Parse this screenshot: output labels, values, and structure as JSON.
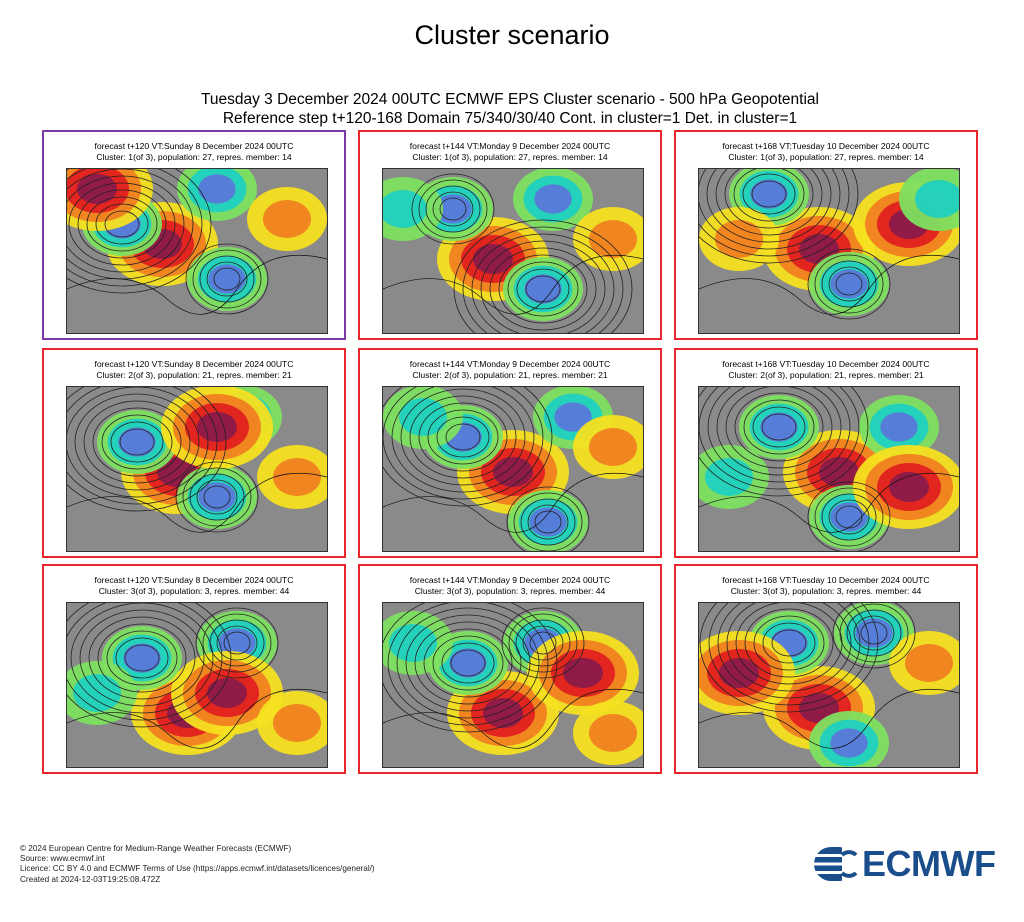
{
  "page": {
    "title": "Cluster scenario",
    "subtitle_line1": "Tuesday 3 December 2024 00UTC ECMWF EPS Cluster scenario - 500 hPa Geopotential",
    "subtitle_line2": "Reference step t+120-168 Domain 75/340/30/40 Cont. in cluster=1 Det. in cluster=1"
  },
  "panels": [
    {
      "line1": "forecast t+120 VT:Sunday 8 December 2024 00UTC",
      "line2": "Cluster: 1(of 3), population: 27, repres. member: 14"
    },
    {
      "line1": "forecast t+144 VT:Monday 9 December 2024 00UTC",
      "line2": "Cluster: 1(of 3), population: 27, repres. member: 14"
    },
    {
      "line1": "forecast t+168 VT:Tuesday 10 December 2024 00UTC",
      "line2": "Cluster: 1(of 3), population: 27, repres. member: 14"
    },
    {
      "line1": "forecast t+120 VT:Sunday 8 December 2024 00UTC",
      "line2": "Cluster: 2(of 3), population: 21, repres. member: 21"
    },
    {
      "line1": "forecast t+144 VT:Monday 9 December 2024 00UTC",
      "line2": "Cluster: 2(of 3), population: 21, repres. member: 21"
    },
    {
      "line1": "forecast t+168 VT:Tuesday 10 December 2024 00UTC",
      "line2": "Cluster: 2(of 3), population: 21, repres. member: 21"
    },
    {
      "line1": "forecast t+120 VT:Sunday 8 December 2024 00UTC",
      "line2": "Cluster: 3(of 3), population: 3, repres. member: 44"
    },
    {
      "line1": "forecast t+144 VT:Monday 9 December 2024 00UTC",
      "line2": "Cluster: 3(of 3), population: 3, repres. member: 44"
    },
    {
      "line1": "forecast t+168 VT:Tuesday 10 December 2024 00UTC",
      "line2": "Cluster: 3(of 3), population: 3, repres. member: 44"
    }
  ],
  "colors": {
    "reference_border": "#7a3aa8",
    "cluster_border": "#e8262b",
    "anomaly_strong_positive": "#8b1a4a",
    "anomaly_positive": "#e02020",
    "anomaly_weak_positive": "#f08020",
    "anomaly_slight_positive": "#f5e020",
    "anomaly_slight_negative": "#7ee060",
    "anomaly_negative": "#20d0c0",
    "anomaly_strong_negative": "#5a78d8",
    "neutral": "#8a8a8a"
  },
  "footer": {
    "copyright": "© 2024 European Centre for Medium-Range Weather Forecasts (ECMWF)",
    "source": "Source: www.ecmwf.int",
    "licence": "Licence: CC BY 4.0 and ECMWF Terms of Use (https://apps.ecmwf.int/datasets/licences/general/)",
    "created": "Created at 2024-12-03T19:25:08.472Z"
  },
  "logo": {
    "text": "ECMWF"
  }
}
